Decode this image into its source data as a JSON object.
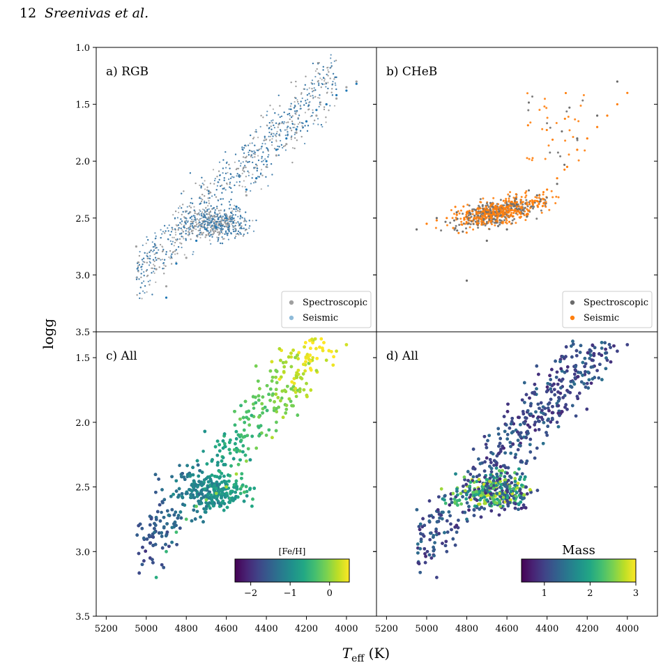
{
  "header": {
    "page_number": "12",
    "authors": "Sreenivas et al."
  },
  "figure": {
    "ylabel": "logg",
    "xlabel_main": "T",
    "xlabel_sub": "eff",
    "xlabel_unit": " (K)"
  },
  "chart_data": [
    {
      "type": "scatter",
      "panel_label": "a) RGB",
      "xlim": [
        5250,
        3850
      ],
      "ylim": [
        3.5,
        1.0
      ],
      "xticks": [],
      "yticks": [
        "1.0",
        "1.5",
        "2.0",
        "2.5",
        "3.0",
        "3.5"
      ],
      "legend": {
        "position": "bottom-right",
        "entries": [
          "Spectroscopic",
          "Seismic"
        ]
      },
      "series": [
        {
          "name": "Spectroscopic",
          "color": "#a0a0a0",
          "x": [
            4900,
            4800,
            4700,
            4650,
            4600,
            4550,
            4500,
            4450,
            4400,
            4350,
            4300,
            4250,
            4200,
            4150,
            4100,
            4050,
            4000,
            3950,
            5050,
            4950
          ],
          "y": [
            3.1,
            2.85,
            2.65,
            2.55,
            2.5,
            2.4,
            2.3,
            2.15,
            2.05,
            1.95,
            1.85,
            1.75,
            1.65,
            1.6,
            1.5,
            1.45,
            1.35,
            1.3,
            2.75,
            2.95
          ]
        },
        {
          "name": "Seismic",
          "color": "#1f77b4",
          "x": [
            4900,
            4850,
            4750,
            4700,
            4650,
            4600,
            4550,
            4500,
            4450,
            4400,
            4350,
            4300,
            4250,
            4200,
            4150,
            4100,
            4050,
            4000,
            3950
          ],
          "y": [
            3.2,
            2.9,
            2.7,
            2.6,
            2.58,
            2.5,
            2.4,
            2.25,
            2.15,
            2.0,
            1.9,
            1.8,
            1.72,
            1.65,
            1.55,
            1.5,
            1.42,
            1.38,
            1.32
          ]
        }
      ]
    },
    {
      "type": "scatter",
      "panel_label": "b) CHeB",
      "xlim": [
        5250,
        3850
      ],
      "ylim": [
        3.5,
        1.0
      ],
      "xticks": [],
      "yticks": [],
      "legend": {
        "position": "bottom-right",
        "entries": [
          "Spectroscopic",
          "Seismic"
        ]
      },
      "series": [
        {
          "name": "Spectroscopic",
          "color": "#6b6b6b",
          "x": [
            5050,
            4950,
            4850,
            4750,
            4650,
            4550,
            4450,
            4350,
            4250,
            4150,
            4050,
            4800,
            4700,
            4600
          ],
          "y": [
            2.6,
            2.5,
            2.45,
            2.45,
            2.42,
            2.38,
            2.3,
            2.2,
            1.8,
            1.6,
            1.3,
            3.05,
            2.7,
            2.6
          ]
        },
        {
          "name": "Seismic",
          "color": "#ff7f0e",
          "x": [
            5000,
            4950,
            4900,
            4850,
            4800,
            4750,
            4700,
            4650,
            4600,
            4550,
            4500,
            4450,
            4400,
            4350,
            4300,
            4250,
            4200,
            4150,
            4100,
            4050,
            4000
          ],
          "y": [
            2.55,
            2.52,
            2.5,
            2.47,
            2.45,
            2.45,
            2.43,
            2.42,
            2.4,
            2.4,
            2.38,
            2.35,
            2.25,
            2.15,
            2.05,
            1.9,
            1.8,
            1.7,
            1.6,
            1.5,
            1.4
          ]
        }
      ]
    },
    {
      "type": "scatter",
      "panel_label": "c) All",
      "xlim": [
        5250,
        3850
      ],
      "ylim": [
        3.5,
        1.3
      ],
      "xticks": [
        "5200",
        "5000",
        "4800",
        "4600",
        "4400",
        "4200",
        "4000"
      ],
      "yticks": [
        "1.5",
        "2.0",
        "2.5",
        "3.0",
        "3.5"
      ],
      "colorbar": {
        "label": "[Fe/H]",
        "range": [
          -2.4,
          0.5
        ],
        "ticks": [
          "−2",
          "−1",
          "0"
        ],
        "tick_values": [
          -2,
          -1,
          0
        ],
        "colormap": "viridis"
      },
      "series": [
        {
          "color_by": "[Fe/H]",
          "x": [
            4950,
            4900,
            4850,
            4800,
            4750,
            4700,
            4650,
            4600,
            4550,
            4500,
            4450,
            4400,
            4350,
            4300,
            4250,
            4200,
            4150,
            4100,
            4050,
            4000
          ],
          "y": [
            3.2,
            3.0,
            2.85,
            2.75,
            2.65,
            2.6,
            2.55,
            2.5,
            2.4,
            2.3,
            2.2,
            2.1,
            2.0,
            1.9,
            1.8,
            1.7,
            1.6,
            1.52,
            1.45,
            1.4
          ],
          "feh": [
            -0.6,
            -0.5,
            -0.4,
            -0.3,
            -0.2,
            -0.1,
            0.0,
            0.1,
            0.1,
            0.0,
            -0.1,
            -0.2,
            -0.2,
            -0.1,
            0.0,
            0.1,
            0.1,
            0.2,
            0.3,
            0.3
          ]
        }
      ]
    },
    {
      "type": "scatter",
      "panel_label": "d) All",
      "xlim": [
        5250,
        3850
      ],
      "ylim": [
        3.5,
        1.3
      ],
      "xticks": [
        "5200",
        "5000",
        "4800",
        "4600",
        "4400",
        "4200",
        "4000"
      ],
      "yticks": [],
      "colorbar": {
        "label": "Mass",
        "range": [
          0.5,
          3.0
        ],
        "ticks": [
          "1",
          "2",
          "3"
        ],
        "tick_values": [
          1,
          2,
          3
        ],
        "colormap": "viridis"
      },
      "series": [
        {
          "color_by": "Mass",
          "x": [
            4950,
            4900,
            4850,
            4800,
            4750,
            4700,
            4650,
            4600,
            4550,
            4500,
            4450,
            4400,
            4350,
            4300,
            4250,
            4200,
            4150,
            4100,
            4050,
            4000
          ],
          "y": [
            3.2,
            3.0,
            2.85,
            2.75,
            2.65,
            2.6,
            2.55,
            2.5,
            2.4,
            2.3,
            2.2,
            2.1,
            2.0,
            1.9,
            1.8,
            1.7,
            1.6,
            1.52,
            1.45,
            1.4
          ],
          "mass": [
            1.0,
            1.1,
            1.2,
            1.5,
            1.6,
            1.8,
            1.4,
            1.3,
            1.2,
            1.2,
            1.1,
            1.1,
            1.0,
            1.0,
            1.0,
            1.0,
            1.0,
            1.0,
            1.0,
            1.0
          ]
        }
      ]
    }
  ]
}
